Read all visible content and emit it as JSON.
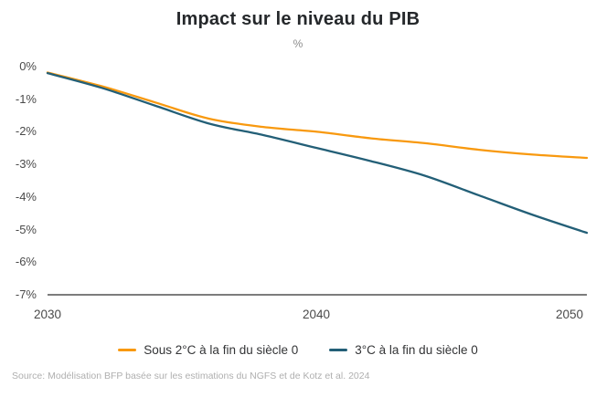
{
  "title": "Impact sur le niveau du PIB",
  "subtitle_unit": "%",
  "source": "Source: Modélisation BFP basée sur les estimations du NGFS et de Kotz et al. 2024",
  "chart_data": {
    "type": "line",
    "title": "Impact sur le niveau du PIB",
    "ylabel": "%",
    "x": [
      2030,
      2032,
      2034,
      2036,
      2038,
      2040,
      2042,
      2044,
      2046,
      2048,
      2050
    ],
    "series": [
      {
        "name": "Sous 2°C à la fin du siècle 0",
        "color": "#F8990F",
        "values": [
          -0.18,
          -0.6,
          -1.1,
          -1.6,
          -1.85,
          -2.0,
          -2.2,
          -2.35,
          -2.55,
          -2.7,
          -2.8
        ]
      },
      {
        "name": "3°C à la fin du siècle 0",
        "color": "#235F77",
        "values": [
          -0.2,
          -0.65,
          -1.2,
          -1.75,
          -2.1,
          -2.5,
          -2.9,
          -3.35,
          -3.95,
          -4.55,
          -5.1
        ]
      }
    ],
    "xlim": [
      2030,
      2050
    ],
    "ylim": [
      -7,
      0
    ],
    "ytick_labels": [
      "0%",
      "-1%",
      "-2%",
      "-3%",
      "-4%",
      "-5%",
      "-6%",
      "-7%"
    ],
    "xtick_labels": [
      "2030",
      "2040",
      "2050"
    ],
    "grid": false,
    "axis_line_color": "#2f2f2f",
    "legend_position": "bottom"
  }
}
